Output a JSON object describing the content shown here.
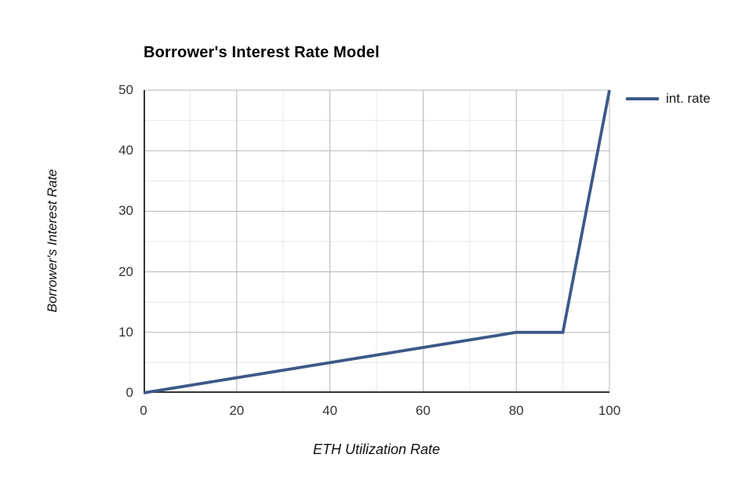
{
  "chart_data": {
    "type": "line",
    "title": "Borrower's Interest Rate Model",
    "xlabel": "ETH Utilization Rate",
    "ylabel": "Borrower's Interest Rate",
    "xlim": [
      0,
      100
    ],
    "ylim": [
      0,
      50
    ],
    "x_ticks": [
      0,
      20,
      40,
      60,
      80,
      100
    ],
    "y_ticks": [
      0,
      10,
      20,
      30,
      40,
      50
    ],
    "x_minor_step": 10,
    "y_minor_step": 5,
    "grid": true,
    "legend_position": "right",
    "series": [
      {
        "name": "int. rate",
        "color": "#3c5988",
        "points": [
          [
            0,
            0
          ],
          [
            80,
            10
          ],
          [
            90,
            10
          ],
          [
            100,
            50
          ]
        ]
      }
    ],
    "colors": {
      "background": "#ffffff",
      "major_grid": "#b5b5b5",
      "minor_grid": "#e8e8e8",
      "axis": "#333333",
      "tick_label": "#333333",
      "title": "#000000"
    }
  }
}
